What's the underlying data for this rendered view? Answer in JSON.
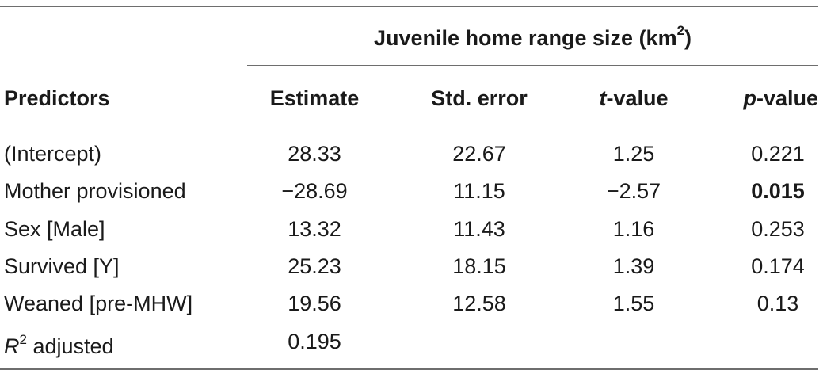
{
  "table": {
    "group_header": "Juvenile home range size (km",
    "group_header_sup": "2",
    "group_header_end": ")",
    "columns": {
      "predictors": "Predictors",
      "estimate": "Estimate",
      "std_error": "Std. error",
      "t_value_italic": "t",
      "t_value_rest": "-value",
      "p_value_italic": "p",
      "p_value_rest": "-value"
    },
    "rows": [
      {
        "predictor": "(Intercept)",
        "estimate": "28.33",
        "std_error": "22.67",
        "t_value": "1.25",
        "p_value": "0.221",
        "p_bold": false
      },
      {
        "predictor": "Mother provisioned",
        "estimate": "−28.69",
        "std_error": "11.15",
        "t_value": "−2.57",
        "p_value": "0.015",
        "p_bold": true
      },
      {
        "predictor": "Sex [Male]",
        "estimate": "13.32",
        "std_error": "11.43",
        "t_value": "1.16",
        "p_value": "0.253",
        "p_bold": false
      },
      {
        "predictor": "Survived [Y]",
        "estimate": "25.23",
        "std_error": "18.15",
        "t_value": "1.39",
        "p_value": "0.174",
        "p_bold": false
      },
      {
        "predictor": "Weaned [pre-MHW]",
        "estimate": "19.56",
        "std_error": "12.58",
        "t_value": "1.55",
        "p_value": "0.13",
        "p_bold": false
      }
    ],
    "r2_row": {
      "label_italic": "R",
      "label_sup": "2",
      "label_rest": " adjusted",
      "estimate": "0.195"
    }
  }
}
